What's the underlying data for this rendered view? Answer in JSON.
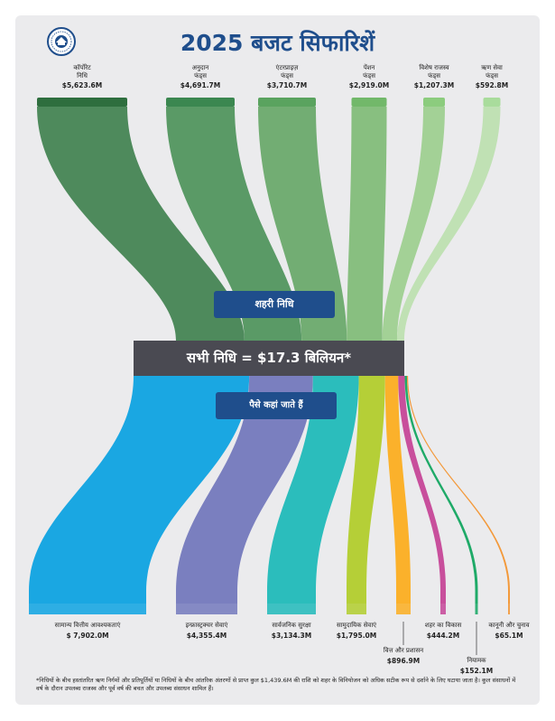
{
  "title": "2025 बजट सिफारिशें",
  "sources": [
    {
      "label": "कॉर्पोरेट\nनिधि",
      "amount": "$5,623.6M",
      "value": 5623.6,
      "color": "#2e6e3e",
      "flow": "#4e8a5c"
    },
    {
      "label": "अनुदान\nफंड्स",
      "amount": "$4,691.7M",
      "value": 4691.7,
      "color": "#3b8750",
      "flow": "#5a9a66"
    },
    {
      "label": "एंटरप्राइज़\nफंड्स",
      "amount": "$3,710.7M",
      "value": 3710.7,
      "color": "#5aa35f",
      "flow": "#72ad73"
    },
    {
      "label": "पेंशन\nफंड्स",
      "amount": "$2,919.0M",
      "value": 2919.0,
      "color": "#72b86a",
      "flow": "#88bf80"
    },
    {
      "label": "विशेष राजस्व\nफंड्स",
      "amount": "$1,207.3M",
      "value": 1207.3,
      "color": "#8ccc7e",
      "flow": "#a3d196"
    },
    {
      "label": "ऋण सेवा\nफंड्स",
      "amount": "$592.8M",
      "value": 592.8,
      "color": "#a9dc9c",
      "flow": "#c0e1b4"
    }
  ],
  "city_funds_label": "शहरी निधि",
  "total_label": "सभी निधि = $17.3 बिलियन*",
  "where_label": "पैसे कहां जाते हैं",
  "destinations": [
    {
      "label": "सामान्य वित्तीय आवश्यकताएं",
      "amount": "$ 7,902.0M",
      "value": 7902.0,
      "color": "#1aa7e2"
    },
    {
      "label": "इन्फ्रास्ट्रक्चर सेवाएं",
      "amount": "$4,355.4M",
      "value": 4355.4,
      "color": "#7a7fbf"
    },
    {
      "label": "सार्वजनिक सुरक्षा",
      "amount": "$3,134.3M",
      "value": 3134.3,
      "color": "#2bbdbc"
    },
    {
      "label": "सामुदायिक सेवाएं",
      "amount": "$1,795.0M",
      "value": 1795.0,
      "color": "#b5cf37"
    },
    {
      "label": "वित्त और प्रशासन",
      "amount": "$896.9M",
      "value": 896.9,
      "color": "#fbb12b"
    },
    {
      "label": "शहर का विकास",
      "amount": "$444.2M",
      "value": 444.2,
      "color": "#c84f9c"
    },
    {
      "label": "नियामक",
      "amount": "$152.1M",
      "value": 152.1,
      "color": "#1faa68"
    },
    {
      "label": "कानूनी और चुनाव",
      "amount": "$65.1M",
      "value": 65.1,
      "color": "#f3993a"
    }
  ],
  "footnote": "*निधियों के बीच हस्तांतरित ऋण निर्गमों और प्रतिपूर्तियों या निधियों के बीच आंतरिक अंतरणों से प्राप्त कुल $1,439.6M की राशि को शहर के विनियोजन को अधिक सटीक रूप से दर्शाने के लिए घटाया जाता है। कुल संसाधनों में वर्ष के दौरान उपलब्ध राजस्व और पूर्व वर्ष की बचत और उपलब्ध संसाधन शामिल हैं।"
}
